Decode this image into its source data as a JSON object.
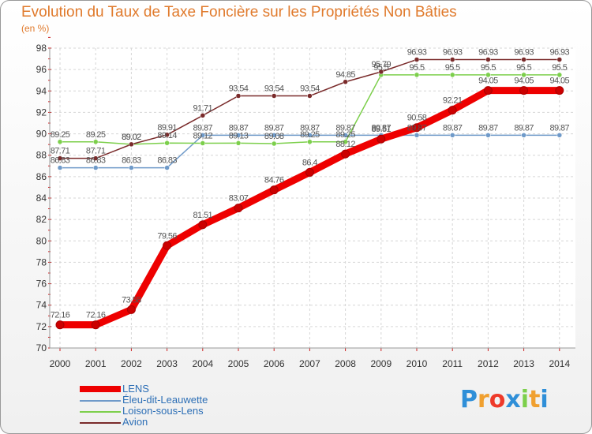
{
  "chart_data": {
    "type": "line",
    "title": "Evolution du Taux de Taxe Foncière sur les Propriétés Non Bâties",
    "subtitle": "(en %)",
    "xlabel": "",
    "ylabel": "",
    "ylim": [
      70,
      98
    ],
    "grid": true,
    "categories": [
      "2000",
      "2001",
      "2002",
      "2003",
      "2004",
      "2005",
      "2006",
      "2007",
      "2008",
      "2009",
      "2010",
      "2011",
      "2012",
      "2013",
      "2014"
    ],
    "series": [
      {
        "name": "LENS",
        "color": "#ee0000",
        "emphasis": true,
        "values": [
          72.16,
          72.16,
          73.58,
          79.56,
          81.51,
          83.07,
          84.76,
          86.4,
          88.12,
          89.51,
          90.58,
          92.21,
          94.05,
          94.05,
          94.05
        ],
        "labels": [
          "72.16",
          "72.16",
          "73.58",
          "79.56",
          "81.51",
          "83.07",
          "84.76",
          "86.4",
          "88.12",
          "89.51",
          "90.58",
          "92.21",
          "94.05",
          "94.05",
          "94.05"
        ]
      },
      {
        "name": "Éleu-dit-Leauwette",
        "color": "#6f9ac9",
        "emphasis": false,
        "values": [
          86.83,
          86.83,
          86.83,
          86.83,
          89.87,
          89.87,
          89.87,
          89.87,
          89.87,
          89.87,
          89.87,
          89.87,
          89.87,
          89.87,
          89.87
        ],
        "labels": [
          "86.83",
          "86.83",
          "86.83",
          "86.83",
          "89.87",
          "89.87",
          "89.87",
          "89.87",
          "89.87",
          "89.87",
          "89.87",
          "89.87",
          "89.87",
          "89.87",
          "89.87"
        ]
      },
      {
        "name": "Loison-sous-Lens",
        "color": "#7ccf4b",
        "emphasis": false,
        "values": [
          89.25,
          89.25,
          89.02,
          89.14,
          89.12,
          89.13,
          89.08,
          89.25,
          89.25,
          95.5,
          95.5,
          95.5,
          95.5,
          95.5,
          95.5
        ],
        "labels": [
          "89.25",
          "89.25",
          "89.02",
          "89.14",
          "89.12",
          "89.13",
          "89.08",
          "89.25",
          "89.25",
          "95.5",
          "95.5",
          "95.5",
          "95.5",
          "95.5",
          "95.5"
        ]
      },
      {
        "name": "Avion",
        "color": "#7a2b2b",
        "emphasis": false,
        "values": [
          87.71,
          87.71,
          89.02,
          89.91,
          91.71,
          93.54,
          93.54,
          93.54,
          94.85,
          95.79,
          96.93,
          96.93,
          96.93,
          96.93,
          96.93
        ],
        "labels": [
          "87.71",
          "87.71",
          "89.02",
          "89.91",
          "91.71",
          "93.54",
          "93.54",
          "93.54",
          "94.85",
          "95.79",
          "96.93",
          "96.93",
          "96.93",
          "96.93",
          "96.93"
        ]
      }
    ],
    "yticks": [
      "70",
      "72",
      "74",
      "76",
      "78",
      "80",
      "82",
      "84",
      "86",
      "88",
      "90",
      "92",
      "94",
      "96",
      "98"
    ]
  },
  "legend": {
    "items": [
      {
        "label": "LENS",
        "color": "#ee0000",
        "thick": true
      },
      {
        "label": "Éleu-dit-Leauwette",
        "color": "#6f9ac9",
        "thick": false
      },
      {
        "label": "Loison-sous-Lens",
        "color": "#7ccf4b",
        "thick": false
      },
      {
        "label": "Avion",
        "color": "#7a2b2b",
        "thick": false
      }
    ]
  },
  "logo": {
    "letters": [
      "P",
      "r",
      "o",
      "x",
      "i",
      "t",
      "i"
    ],
    "colors": [
      "#2f8fd8",
      "#f0a030",
      "#ee3a2a",
      "#2f8fd8",
      "#7ccf4b",
      "#f0a030",
      "#2f8fd8"
    ]
  }
}
